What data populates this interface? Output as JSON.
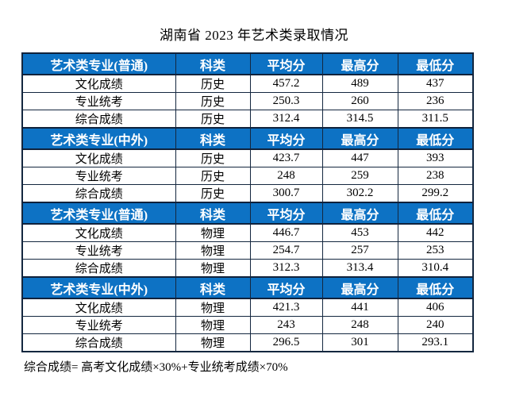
{
  "title": "湖南省 2023 年艺术类录取情况",
  "table": {
    "columns": [
      "科类",
      "平均分",
      "最高分",
      "最低分"
    ],
    "sections": [
      {
        "header": "艺术类专业(普通)",
        "rows": [
          [
            "文化成绩",
            "历史",
            "457.2",
            "489",
            "437"
          ],
          [
            "专业统考",
            "历史",
            "250.3",
            "260",
            "236"
          ],
          [
            "综合成绩",
            "历史",
            "312.4",
            "314.5",
            "311.5"
          ]
        ]
      },
      {
        "header": "艺术类专业(中外)",
        "rows": [
          [
            "文化成绩",
            "历史",
            "423.7",
            "447",
            "393"
          ],
          [
            "专业统考",
            "历史",
            "248",
            "259",
            "238"
          ],
          [
            "综合成绩",
            "历史",
            "300.7",
            "302.2",
            "299.2"
          ]
        ]
      },
      {
        "header": "艺术类专业(普通)",
        "rows": [
          [
            "文化成绩",
            "物理",
            "446.7",
            "453",
            "442"
          ],
          [
            "专业统考",
            "物理",
            "254.7",
            "257",
            "253"
          ],
          [
            "综合成绩",
            "物理",
            "312.3",
            "313.4",
            "310.4"
          ]
        ]
      },
      {
        "header": "艺术类专业(中外)",
        "rows": [
          [
            "文化成绩",
            "物理",
            "421.3",
            "441",
            "406"
          ],
          [
            "专业统考",
            "物理",
            "243",
            "248",
            "240"
          ],
          [
            "综合成绩",
            "物理",
            "296.5",
            "301",
            "293.1"
          ]
        ]
      }
    ]
  },
  "footnote": "综合成绩= 高考文化成绩×30%+专业统考成绩×70%",
  "colors": {
    "header_bg": "#0d72c4",
    "header_text": "#ffffff",
    "border": "#14273f",
    "body_text": "#000000",
    "page_bg": "#ffffff"
  }
}
